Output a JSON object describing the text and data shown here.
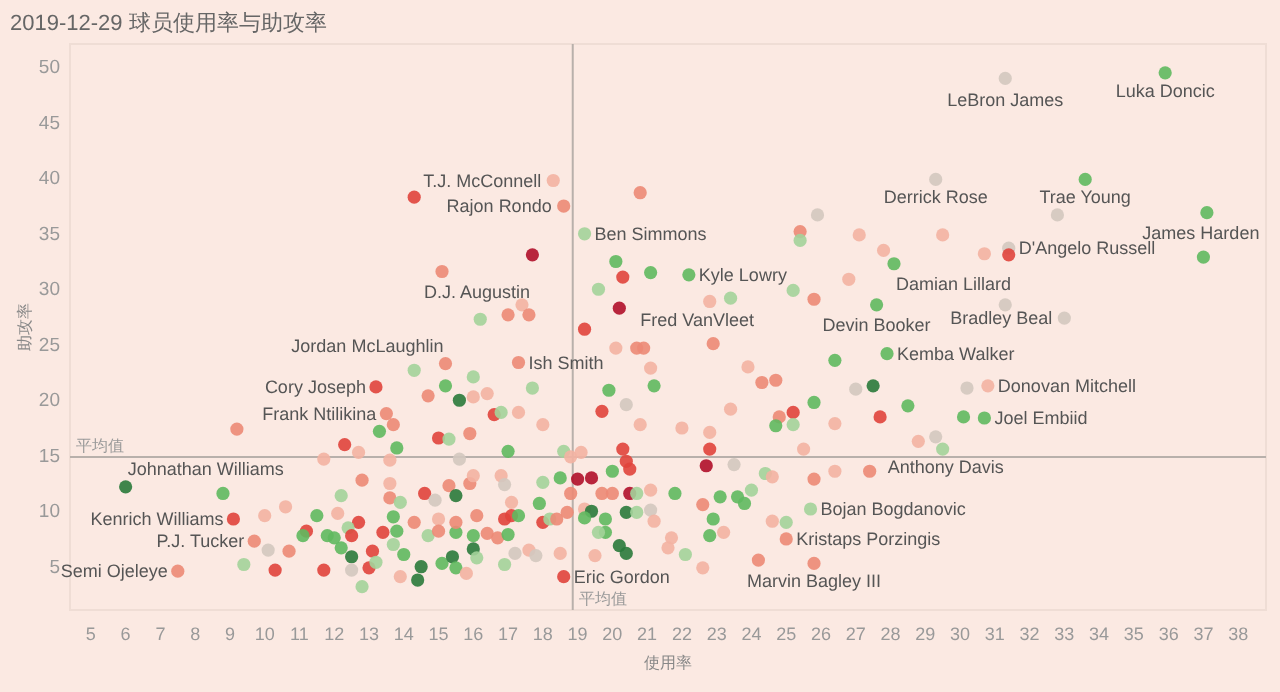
{
  "chart_data": {
    "type": "scatter",
    "title": "2019-12-29 球员使用率与助攻率",
    "xlabel": "使用率",
    "ylabel": "助攻率",
    "xlim": [
      4.4,
      38.8
    ],
    "ylim": [
      1,
      52
    ],
    "xticks": [
      5,
      6,
      7,
      8,
      9,
      10,
      11,
      12,
      13,
      14,
      15,
      16,
      17,
      18,
      19,
      20,
      21,
      22,
      23,
      24,
      25,
      26,
      27,
      28,
      29,
      30,
      31,
      32,
      33,
      34,
      35,
      36,
      37,
      38
    ],
    "yticks": [
      5,
      10,
      15,
      20,
      25,
      30,
      35,
      40,
      45,
      50
    ],
    "grid": false,
    "marker": "circle",
    "x": [
      18.3,
      18.6,
      14.3,
      19.2,
      17.7,
      15.1,
      20.1,
      20.3,
      19.6,
      20.2,
      16.2,
      17.0,
      17.4,
      17.6,
      19.2,
      20.8,
      20.1,
      20.7,
      31.3,
      35.9,
      29.3,
      33.6,
      32.8,
      37.1,
      37.0,
      25.9,
      25.4,
      25.4,
      27.1,
      29.5,
      27.8,
      28.1,
      30.7,
      31.4,
      31.4,
      21.1,
      22.2,
      25.2,
      26.8,
      25.8,
      22.8,
      23.4,
      27.6,
      31.3,
      33.0,
      22.9,
      20.9,
      21.1,
      19.9,
      21.2,
      19.7,
      20.4,
      20.8,
      22.0,
      22.8,
      22.8,
      22.7,
      23.5,
      23.9,
      24.3,
      24.7,
      23.4,
      24.8,
      25.2,
      24.7,
      25.2,
      25.8,
      26.4,
      26.4,
      25.5,
      27.0,
      27.5,
      27.9,
      28.5,
      27.7,
      28.8,
      29.3,
      29.5,
      30.2,
      30.8,
      30.1,
      30.7,
      26.4,
      25.8,
      27.4,
      24.4,
      24.6,
      24.0,
      23.6,
      23.8,
      23.1,
      22.6,
      21.8,
      21.1,
      20.5,
      20.7,
      20.4,
      20.7,
      21.1,
      21.2,
      19.8,
      19.8,
      22.9,
      22.8,
      23.2,
      24.6,
      25.0,
      25.7,
      25.0,
      21.7,
      21.6,
      20.2,
      20.4,
      22.1,
      22.6,
      24.2,
      25.8,
      20.3,
      20.4,
      20.5,
      20.0,
      15.2,
      17.3,
      13.2,
      13.5,
      14.3,
      16.0,
      15.2,
      14.7,
      15.6,
      16.0,
      16.4,
      17.7,
      16.6,
      16.8,
      17.3,
      18.0,
      13.7,
      13.3,
      13.8,
      15.0,
      15.3,
      15.9,
      17.0,
      9.2,
      12.3,
      12.7,
      11.7,
      13.6,
      15.6,
      18.6,
      18.8,
      6.0,
      8.8,
      9.1,
      10.0,
      10.6,
      9.7,
      10.1,
      10.7,
      9.4,
      7.5,
      10.3,
      11.7,
      11.2,
      11.1,
      11.5,
      12.1,
      11.8,
      12.0,
      12.2,
      12.8,
      12.7,
      12.4,
      12.5,
      12.2,
      12.5,
      12.5,
      12.8,
      13.0,
      13.1,
      13.2,
      13.4,
      13.6,
      13.6,
      13.7,
      13.8,
      13.9,
      13.7,
      14.0,
      13.9,
      14.4,
      14.5,
      14.3,
      14.6,
      14.9,
      14.7,
      15.0,
      15.0,
      15.3,
      15.5,
      15.1,
      15.4,
      15.5,
      15.5,
      15.5,
      15.8,
      15.9,
      16.0,
      16.0,
      16.0,
      16.1,
      16.4,
      16.1,
      16.8,
      16.9,
      16.9,
      17.1,
      16.7,
      17.0,
      17.1,
      17.3,
      16.9,
      17.2,
      17.6,
      17.9,
      18.0,
      17.8,
      18.0,
      18.2,
      18.5,
      18.4,
      18.5,
      18.7,
      18.8,
      18.6,
      19.0,
      19.4,
      19.1,
      19.2,
      19.4,
      19.2,
      19.6,
      19.5,
      19.7,
      20.0
    ],
    "values": [
      39.7,
      37.4,
      38.2,
      34.9,
      33.0,
      31.5,
      32.4,
      31.0,
      29.9,
      28.2,
      27.2,
      27.6,
      28.5,
      27.6,
      26.3,
      38.6,
      24.6,
      24.6,
      48.9,
      49.4,
      39.8,
      39.8,
      36.6,
      36.8,
      32.8,
      36.6,
      35.1,
      34.3,
      34.8,
      34.8,
      33.4,
      32.2,
      33.1,
      33.6,
      33.0,
      31.4,
      31.2,
      29.8,
      30.8,
      29.0,
      28.8,
      29.1,
      28.5,
      28.5,
      27.3,
      25.0,
      24.6,
      22.8,
      20.8,
      21.2,
      18.9,
      19.5,
      17.7,
      17.4,
      17.0,
      15.5,
      14.0,
      14.1,
      22.9,
      21.5,
      21.7,
      19.1,
      18.4,
      18.8,
      17.6,
      17.7,
      19.7,
      17.8,
      23.5,
      15.5,
      20.9,
      21.2,
      24.1,
      19.4,
      18.4,
      16.2,
      16.6,
      15.5,
      21.0,
      21.2,
      18.4,
      18.3,
      13.5,
      12.8,
      13.5,
      13.3,
      13.0,
      11.8,
      11.2,
      10.6,
      11.2,
      10.5,
      11.5,
      11.8,
      11.5,
      11.5,
      9.8,
      9.8,
      10.0,
      9.0,
      9.2,
      8.0,
      9.2,
      7.7,
      8.0,
      9.0,
      8.9,
      10.1,
      7.4,
      7.5,
      6.6,
      6.8,
      6.1,
      6.0,
      4.8,
      5.5,
      5.2,
      15.5,
      14.4,
      13.7,
      13.5,
      23.2,
      23.3,
      21.1,
      18.7,
      22.6,
      22.0,
      21.2,
      20.3,
      19.9,
      20.2,
      20.5,
      21.0,
      18.6,
      18.8,
      18.8,
      17.7,
      17.7,
      17.1,
      15.6,
      16.5,
      16.4,
      16.9,
      15.3,
      17.3,
      15.9,
      15.2,
      14.6,
      14.5,
      14.6,
      15.3,
      14.8,
      12.1,
      11.5,
      9.2,
      9.5,
      10.3,
      7.2,
      6.4,
      6.3,
      5.1,
      4.5,
      4.6,
      4.6,
      8.1,
      7.7,
      9.5,
      9.7,
      7.7,
      7.5,
      11.3,
      12.7,
      8.9,
      8.4,
      7.7,
      6.6,
      5.8,
      4.6,
      3.1,
      4.8,
      6.3,
      5.3,
      8.0,
      11.1,
      12.4,
      9.4,
      8.1,
      10.7,
      6.9,
      6.0,
      4.0,
      3.7,
      4.9,
      8.9,
      11.5,
      10.9,
      7.7,
      9.2,
      8.1,
      12.2,
      11.3,
      5.2,
      5.8,
      4.8,
      8.0,
      8.9,
      4.3,
      12.4,
      13.1,
      7.7,
      6.5,
      9.5,
      7.9,
      5.7,
      13.1,
      12.3,
      9.2,
      9.5,
      7.5,
      7.8,
      10.7,
      9.5,
      5.1,
      6.1,
      6.4,
      10.6,
      12.5,
      5.9,
      8.9,
      9.2,
      12.9,
      9.2,
      6.1,
      9.8,
      11.5,
      4.0,
      12.8,
      12.9,
      15.2,
      10.1,
      9.9,
      9.3,
      8.0,
      5.9,
      11.5,
      11.5
    ],
    "colors": [
      "#f3b3a2",
      "#ec8a75",
      "#e0443c",
      "#a3d39a",
      "#b0102a",
      "#ec8a75",
      "#5fb95f",
      "#e0443c",
      "#a3d39a",
      "#b0102a",
      "#a3d39a",
      "#ec8a75",
      "#f3b3a2",
      "#ec8a75",
      "#e0443c",
      "#ec8a75",
      "#f3b3a2",
      "#ec8a75",
      "#d3c8bf",
      "#5fb95f",
      "#d3c8bf",
      "#5fb95f",
      "#d3c8bf",
      "#5fb95f",
      "#5fb95f",
      "#d3c8bf",
      "#ec8a75",
      "#a3d39a",
      "#f3b3a2",
      "#f3b3a2",
      "#f3b3a2",
      "#5fb95f",
      "#f3b3a2",
      "#d3c8bf",
      "#e0443c",
      "#5fb95f",
      "#5fb95f",
      "#a3d39a",
      "#f3b3a2",
      "#ec8a75",
      "#f3b3a2",
      "#a3d39a",
      "#5fb95f",
      "#d3c8bf",
      "#d3c8bf",
      "#ec8a75",
      "#ec8a75",
      "#f3b3a2",
      "#5fb95f",
      "#5fb95f",
      "#e0443c",
      "#d3c8bf",
      "#f3b3a2",
      "#f3b3a2",
      "#f3b3a2",
      "#e0443c",
      "#b0102a",
      "#d3c8bf",
      "#f3b3a2",
      "#ec8a75",
      "#ec8a75",
      "#f3b3a2",
      "#ec8a75",
      "#e0443c",
      "#5fb95f",
      "#a3d39a",
      "#5fb95f",
      "#f3b3a2",
      "#5fb95f",
      "#f3b3a2",
      "#d3c8bf",
      "#2a7a3b",
      "#5fb95f",
      "#5fb95f",
      "#e0443c",
      "#f3b3a2",
      "#d3c8bf",
      "#a3d39a",
      "#d3c8bf",
      "#f3b3a2",
      "#5fb95f",
      "#5fb95f",
      "#f3b3a2",
      "#ec8a75",
      "#ec8a75",
      "#a3d39a",
      "#f3b3a2",
      "#a3d39a",
      "#5fb95f",
      "#5fb95f",
      "#5fb95f",
      "#ec8a75",
      "#5fb95f",
      "#f3b3a2",
      "#b0102a",
      "#a3d39a",
      "#2a7a3b",
      "#a3d39a",
      "#d3c8bf",
      "#f3b3a2",
      "#5fb95f",
      "#5fb95f",
      "#5fb95f",
      "#5fb95f",
      "#f3b3a2",
      "#f3b3a2",
      "#a3d39a",
      "#a3d39a",
      "#ec8a75",
      "#f3b3a2",
      "#f3b3a2",
      "#2a7a3b",
      "#2a7a3b",
      "#a3d39a",
      "#f3b3a2",
      "#ec8a75",
      "#ec8a75",
      "#e0443c",
      "#e0443c",
      "#e0443c",
      "#5fb95f",
      "#ec8a75",
      "#ec8a75",
      "#e0443c",
      "#ec8a75",
      "#a3d39a",
      "#a3d39a",
      "#5fb95f",
      "#ec8a75",
      "#2a7a3b",
      "#f3b3a2",
      "#f3b3a2",
      "#a3d39a",
      "#e0443c",
      "#a3d39a",
      "#f3b3a2",
      "#f3b3a2",
      "#ec8a75",
      "#5fb95f",
      "#5fb95f",
      "#e0443c",
      "#a3d39a",
      "#ec8a75",
      "#5fb95f",
      "#ec8a75",
      "#e0443c",
      "#f3b3a2",
      "#f3b3a2",
      "#f3b3a2",
      "#d3c8bf",
      "#a3d39a",
      "#f3b3a2",
      "#2a7a3b",
      "#5fb95f",
      "#e0443c",
      "#f3b3a2",
      "#f3b3a2",
      "#ec8a75",
      "#d3c8bf",
      "#ec8a75",
      "#a3d39a",
      "#ec8a75",
      "#e0443c",
      "#e0443c",
      "#e0443c",
      "#5fb95f",
      "#5fb95f",
      "#f3b3a2",
      "#5fb95f",
      "#5fb95f",
      "#a3d39a",
      "#ec8a75",
      "#e0443c",
      "#a3d39a",
      "#e0443c",
      "#5fb95f",
      "#2a7a3b",
      "#d3c8bf",
      "#a3d39a",
      "#e0443c",
      "#e0443c",
      "#a3d39a",
      "#e0443c",
      "#ec8a75",
      "#f3b3a2",
      "#5fb95f",
      "#5fb95f",
      "#a3d39a",
      "#a3d39a",
      "#5fb95f",
      "#f3b3a2",
      "#2a7a3b",
      "#2a7a3b",
      "#ec8a75",
      "#e0443c",
      "#d3c8bf",
      "#a3d39a",
      "#f3b3a2",
      "#ec8a75",
      "#ec8a75",
      "#2a7a3b",
      "#5fb95f",
      "#2a7a3b",
      "#5fb95f",
      "#5fb95f",
      "#ec8a75",
      "#f3b3a2",
      "#ec8a75",
      "#f3b3a2",
      "#5fb95f",
      "#2a7a3b",
      "#ec8a75",
      "#ec8a75",
      "#a3d39a",
      "#f3b3a2",
      "#d3c8bf",
      "#e0443c",
      "#e0443c",
      "#ec8a75",
      "#5fb95f",
      "#f3b3a2",
      "#5fb95f",
      "#a3d39a",
      "#d3c8bf",
      "#f3b3a2",
      "#5fb95f",
      "#a3d39a",
      "#d3c8bf",
      "#e0443c",
      "#a3d39a",
      "#5fb95f",
      "#ec8a75",
      "#f3b3a2",
      "#ec8a75",
      "#ec8a75",
      "#e0443c",
      "#b0102a",
      "#b0102a",
      "#f3b3a2",
      "#f3b3a2",
      "#2a7a3b",
      "#5fb95f",
      "#a3d39a",
      "#f3b3a2",
      "#ec8a75",
      "#ec8a75"
    ],
    "ref_lines": [
      {
        "axis": "x",
        "value": 18.86,
        "label": "平均值",
        "color": "#b8b0ab"
      },
      {
        "axis": "y",
        "value": 14.78,
        "label": "平均值",
        "color": "#b8b0ab"
      }
    ],
    "annotations": [
      {
        "text": "LeBron James",
        "x": 31.3,
        "y": 48.9
      },
      {
        "text": "Luka Doncic",
        "x": 35.9,
        "y": 49.4
      },
      {
        "text": "T.J. McConnell",
        "x": 18.3,
        "y": 39.7
      },
      {
        "text": "Rajon Rondo",
        "x": 18.6,
        "y": 37.4
      },
      {
        "text": "Derrick Rose",
        "x": 29.3,
        "y": 39.8
      },
      {
        "text": "Trae Young",
        "x": 33.6,
        "y": 39.8
      },
      {
        "text": "James Harden",
        "x": 37.1,
        "y": 36.8
      },
      {
        "text": "Ben Simmons",
        "x": 19.2,
        "y": 34.9
      },
      {
        "text": "D'Angelo Russell",
        "x": 31.4,
        "y": 33.6
      },
      {
        "text": "Kyle Lowry",
        "x": 22.2,
        "y": 31.2
      },
      {
        "text": "Damian Lillard",
        "x": 28.1,
        "y": 32.2
      },
      {
        "text": "D.J. Augustin",
        "x": 15.1,
        "y": 31.5
      },
      {
        "text": "Fred VanVleet",
        "x": 22.9,
        "y": 25.0
      },
      {
        "text": "Devin Booker",
        "x": 27.6,
        "y": 28.5
      },
      {
        "text": "Bradley Beal",
        "x": 33.0,
        "y": 27.3
      },
      {
        "text": "Kemba Walker",
        "x": 27.9,
        "y": 24.1
      },
      {
        "text": "Jordan McLaughlin",
        "x": 15.2,
        "y": 23.2
      },
      {
        "text": "Ish Smith",
        "x": 17.3,
        "y": 23.3
      },
      {
        "text": "Cory Joseph",
        "x": 13.2,
        "y": 21.1
      },
      {
        "text": "Frank Ntilikina",
        "x": 13.5,
        "y": 18.7
      },
      {
        "text": "Donovan Mitchell",
        "x": 30.8,
        "y": 21.2
      },
      {
        "text": "Joel Embiid",
        "x": 30.7,
        "y": 18.3
      },
      {
        "text": "Johnathan Williams",
        "x": 6.0,
        "y": 12.1
      },
      {
        "text": "Anthony Davis",
        "x": 27.4,
        "y": 13.5
      },
      {
        "text": "Kenrich Williams",
        "x": 9.1,
        "y": 9.2
      },
      {
        "text": "Bojan Bogdanovic",
        "x": 25.7,
        "y": 10.1
      },
      {
        "text": "P.J. Tucker",
        "x": 9.7,
        "y": 7.2
      },
      {
        "text": "Kristaps Porzingis",
        "x": 25.0,
        "y": 7.4
      },
      {
        "text": "Semi Ojeleye",
        "x": 7.5,
        "y": 4.5
      },
      {
        "text": "Eric Gordon",
        "x": 18.6,
        "y": 4.0
      },
      {
        "text": "Marvin Bagley III",
        "x": 25.8,
        "y": 5.2
      }
    ]
  }
}
